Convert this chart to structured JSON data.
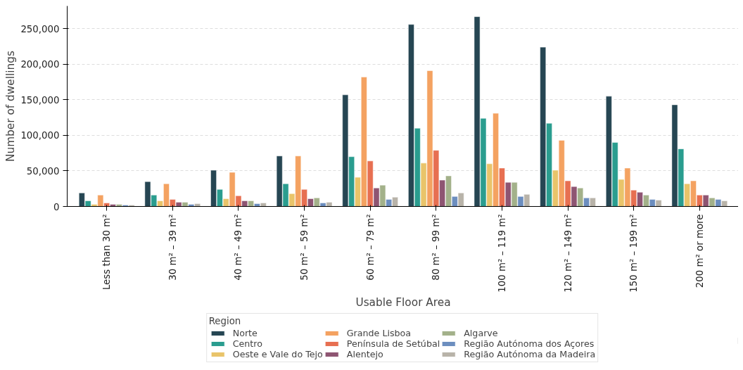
{
  "chart_data": {
    "type": "bar",
    "xlabel": "Usable Floor Area",
    "ylabel": "Number of dwellings",
    "legend_title": "Region",
    "legend": "bottom",
    "grid": "y",
    "categories": [
      "Less than 30 m²",
      "30 m² – 39 m²",
      "40 m² – 49 m²",
      "50 m² – 59 m²",
      "60 m² – 79 m²",
      "80 m² – 99 m²",
      "100 m² – 119 m²",
      "120 m² – 149 m²",
      "150 m² – 199 m²",
      "200 m² or more"
    ],
    "ylim": [
      0,
      282000
    ],
    "yticks": [
      {
        "value": 0,
        "label": "0"
      },
      {
        "value": 50000,
        "label": "50,000"
      },
      {
        "value": 100000,
        "label": "100,000"
      },
      {
        "value": 150000,
        "label": "150,000"
      },
      {
        "value": 200000,
        "label": "200,000"
      },
      {
        "value": 250000,
        "label": "250,000"
      }
    ],
    "series": [
      {
        "name": "Norte",
        "color": "#264653",
        "values": [
          19000,
          35000,
          51000,
          71000,
          157000,
          256000,
          267000,
          224000,
          155000,
          143000
        ]
      },
      {
        "name": "Centro",
        "color": "#2a9d8f",
        "values": [
          8000,
          16000,
          24000,
          32000,
          70000,
          110000,
          124000,
          117000,
          90000,
          81000
        ]
      },
      {
        "name": "Oeste e Vale do Tejo",
        "color": "#e9c46a",
        "values": [
          3000,
          8000,
          11000,
          18000,
          41000,
          61000,
          60000,
          51000,
          38000,
          32000
        ]
      },
      {
        "name": "Grande Lisboa",
        "color": "#f4a261",
        "values": [
          16000,
          32000,
          48000,
          71000,
          182000,
          191000,
          131000,
          93000,
          54000,
          36000
        ]
      },
      {
        "name": "Península de Setúbal",
        "color": "#e76f51",
        "values": [
          5000,
          10000,
          15000,
          24000,
          64000,
          79000,
          54000,
          36000,
          23000,
          16000
        ]
      },
      {
        "name": "Alentejo",
        "color": "#8e5572",
        "values": [
          3000,
          6000,
          8000,
          11000,
          26000,
          37000,
          34000,
          28000,
          20000,
          16000
        ]
      },
      {
        "name": "Algarve",
        "color": "#a3b18a",
        "values": [
          3000,
          6000,
          8000,
          12000,
          30000,
          43000,
          34000,
          26000,
          16000,
          12000
        ]
      },
      {
        "name": "Região Autónoma dos Açores",
        "color": "#6c8ebf",
        "values": [
          2000,
          3000,
          4000,
          5000,
          10000,
          14000,
          14000,
          12000,
          10000,
          10000
        ]
      },
      {
        "name": "Região Autónoma da Madeira",
        "color": "#b8b3a9",
        "values": [
          2000,
          4000,
          5000,
          6000,
          13000,
          19000,
          17000,
          12000,
          9000,
          8000
        ]
      }
    ]
  }
}
